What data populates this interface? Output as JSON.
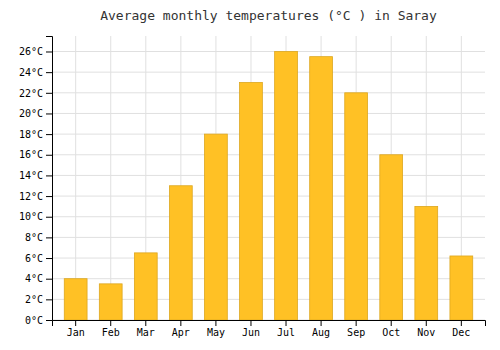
{
  "chart_data": {
    "type": "bar",
    "title": "Average monthly temperatures (°C ) in Saray",
    "categories": [
      "Jan",
      "Feb",
      "Mar",
      "Apr",
      "May",
      "Jun",
      "Jul",
      "Aug",
      "Sep",
      "Oct",
      "Nov",
      "Dec"
    ],
    "values": [
      4.0,
      3.5,
      6.5,
      13.0,
      18.0,
      23.0,
      26.0,
      25.5,
      22.0,
      16.0,
      11.0,
      6.2
    ],
    "color": "#FFC125",
    "ylim": [
      0,
      27.5
    ],
    "yticks": [
      {
        "value": 0,
        "label": "0°C"
      },
      {
        "value": 2,
        "label": "2°C"
      },
      {
        "value": 4,
        "label": "4°C"
      },
      {
        "value": 6,
        "label": "6°C"
      },
      {
        "value": 8,
        "label": "8°C"
      },
      {
        "value": 10,
        "label": "10°C"
      },
      {
        "value": 12,
        "label": "12°C"
      },
      {
        "value": 14,
        "label": "14°C"
      },
      {
        "value": 16,
        "label": "16°C"
      },
      {
        "value": 18,
        "label": "18°C"
      },
      {
        "value": 20,
        "label": "20°C"
      },
      {
        "value": 22,
        "label": "22°C"
      },
      {
        "value": 24,
        "label": "24°C"
      },
      {
        "value": 26,
        "label": "26°C"
      }
    ],
    "grid": true
  }
}
